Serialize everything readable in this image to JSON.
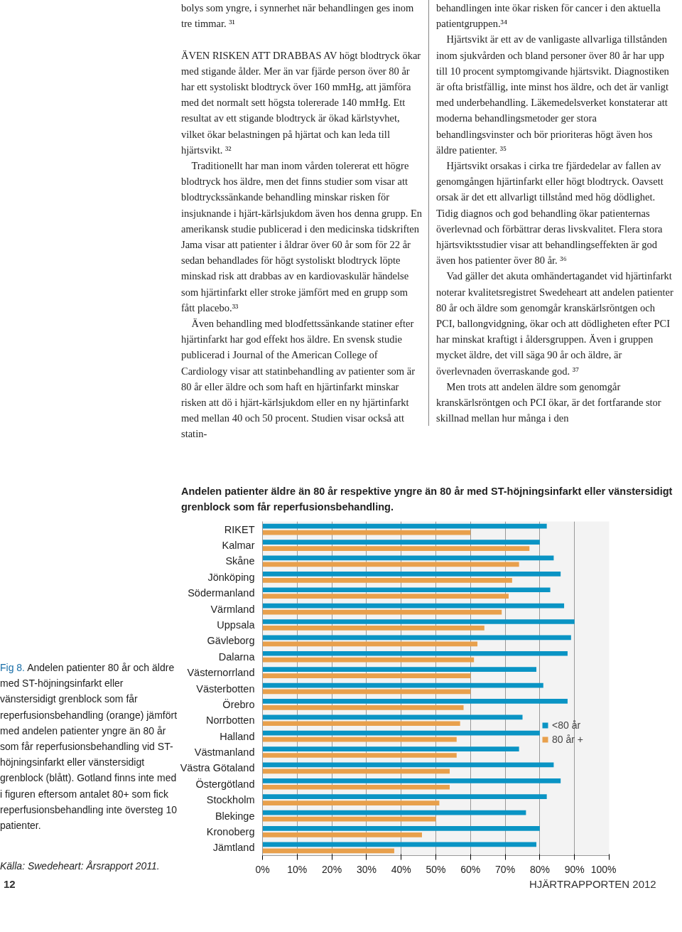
{
  "chart_data": {
    "type": "bar",
    "orientation": "horizontal",
    "title": "Andelen patienter äldre än 80 år respektive yngre än 80 år med ST-höjningsinfarkt eller vänstersidigt grenblock som får reperfusionsbehandling.",
    "categories": [
      "RIKET",
      "Kalmar",
      "Skåne",
      "Jönköping",
      "Södermanland",
      "Värmland",
      "Uppsala",
      "Gävleborg",
      "Dalarna",
      "Västernorrland",
      "Västerbotten",
      "Örebro",
      "Norrbotten",
      "Halland",
      "Västmanland",
      "Västra Götaland",
      "Östergötland",
      "Stockholm",
      "Blekinge",
      "Kronoberg",
      "Jämtland"
    ],
    "series": [
      {
        "name": "<80 år",
        "color": "#0a94c4",
        "values": [
          82,
          80,
          84,
          86,
          83,
          87,
          90,
          89,
          88,
          79,
          81,
          88,
          75,
          80,
          74,
          84,
          86,
          82,
          76,
          80,
          79
        ]
      },
      {
        "name": "80 år +",
        "color": "#e8a04c",
        "values": [
          60,
          77,
          74,
          72,
          71,
          69,
          64,
          62,
          61,
          60,
          60,
          58,
          57,
          56,
          56,
          54,
          54,
          51,
          50,
          46,
          38
        ]
      }
    ],
    "xlim": [
      0,
      100
    ],
    "xticks": [
      {
        "value": 0,
        "label": "0%"
      },
      {
        "value": 10,
        "label": "10%"
      },
      {
        "value": 20,
        "label": "20%"
      },
      {
        "value": 30,
        "label": "30%"
      },
      {
        "value": 40,
        "label": "40%"
      },
      {
        "value": 50,
        "label": "50%"
      },
      {
        "value": 60,
        "label": "60%"
      },
      {
        "value": 70,
        "label": "70%"
      },
      {
        "value": 80,
        "label": "80%"
      },
      {
        "value": 90,
        "label": "90%"
      },
      {
        "value": 100,
        "label": "100%"
      }
    ],
    "grid": "x",
    "legend": "right",
    "annotations": [
      "bolys som yngre, i synnerhet när behandlingen ges inom tre timmar. ³¹\n\nÄVEN RISKEN ATT DRABBAS AV högt blodtryck ökar med stigande ålder. Mer än var fjärde person över 80 år har ett systoliskt blodtryck över 160 mmHg, att jämföra med det normalt sett högsta tolererade 140 mmHg. Ett resultat av ett stigande blodtryck är ökad kärlstyvhet, vilket ökar belastningen på hjärtat och kan leda till hjärtsvikt. ³²\n    Traditionellt har man inom vården tolererat ett högre blodtryck hos äldre, men det finns studier som visar att blodtryckssänkande behandling minskar risken för insjuknande i hjärt-kärlsjukdom även hos denna grupp. En amerikansk studie publicerad i den medicinska tidskriften Jama visar att patienter i åldrar över 60 år som för 22 år sedan behandlades för högt systoliskt blodtryck löpte minskad risk att drabbas av en kardiovaskulär händelse som hjärtinfarkt eller stroke jämfört med en grupp som fått placebo.³³\n    Även behandling med blodfettssänkande statiner efter hjärtinfarkt har god effekt hos äldre. En svensk studie publicerad i Journal of the American College of Cardiology visar att statinbehandling av patienter som är 80 år eller äldre och som haft en hjärtinfarkt minskar risken att dö i hjärt-kärlsjukdom eller en ny hjärtinfarkt med mellan 40 och 50 procent. Studien visar också att statin-",
      "behandlingen inte ökar risken för cancer i den aktuella patientgruppen.³⁴\n    Hjärtsvikt är ett av de vanligaste allvarliga tillstånden inom sjukvården och bland personer över 80 år har upp till 10 procent symptomgivande hjärtsvikt. Diagnostiken är ofta bristfällig, inte minst hos äldre, och det är vanligt med underbehandling. Läkemedelsverket konstaterar att moderna behandlingsmetoder ger stora behandlingsvinster och bör prioriteras högt även hos äldre patienter. ³⁵\n    Hjärtsvikt orsakas i cirka tre fjärdedelar av fallen av genomgången hjärtinfarkt eller högt blodtryck. Oavsett orsak är det ett allvarligt tillstånd med hög dödlighet. Tidig diagnos och god behandling ökar patienternas överlevnad och förbättrar deras livskvalitet. Flera stora hjärtsviktsstudier visar att behandlingseffekten är god även hos patienter över 80 år. ³⁶\n    Vad gäller det akuta omhändertagandet vid hjärtinfarkt noterar kvalitetsregistret Swedeheart att andelen patienter 80 år och äldre som genomgår kranskärlsröntgen och PCI, ballongvidgning, ökar och att dödligheten efter PCI har minskat kraftigt i åldersgruppen. Även i gruppen mycket äldre, det vill säga 90 år och äldre, är överlevnaden överraskande god. ³⁷\n    Men trots att andelen äldre som genomgår kranskärlsröntgen och PCI ökar, är det fortfarande stor skillnad mellan hur många i den",
      "Fig 8. Andelen patienter 80 år och äldre med ST-höjningsinfarkt eller vänstersidigt grenblock som får reperfusionsbehandling (orange) jämfört med andelen patienter yngre än 80 år som får reperfusionsbehandling vid ST-höjningsinfarkt eller vänstersidigt grenblock (blått). Gotland finns inte med i figuren eftersom antalet 80+ som fick reperfusionsbehandling inte översteg 10 patienter.",
      "Källa: Swedeheart: Årsrapport 2011.",
      "12",
      "HJÄRTRAPPORTEN 2012"
    ]
  }
}
